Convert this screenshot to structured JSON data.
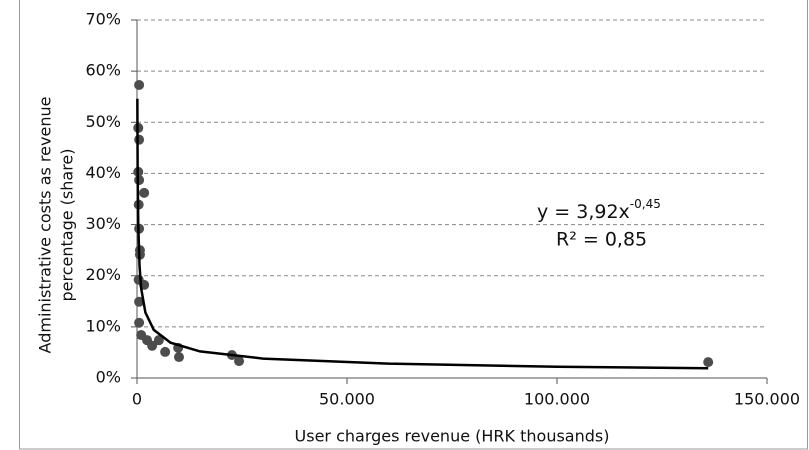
{
  "chart_data": {
    "type": "scatter",
    "xlabel": "User charges revenue (HRK thousands)",
    "ylabel": [
      "Administrative costs as revenue",
      "percentage (share)"
    ],
    "equation": "y = 3,92x",
    "equation_exponent": "-0,45",
    "r_squared": "R² = 0,85",
    "xlim": [
      0,
      150000
    ],
    "ylim": [
      0,
      70
    ],
    "xticks": [
      0,
      {
        "value": 50000,
        "label": "50.000"
      },
      {
        "value": 100000,
        "label": "100.000"
      },
      {
        "value": 150000,
        "label": "150.000"
      }
    ],
    "yticks": [
      {
        "value": 0,
        "label": "0%"
      },
      {
        "value": 10,
        "label": "10%"
      },
      {
        "value": 20,
        "label": "20%"
      },
      {
        "value": 30,
        "label": "30%"
      },
      {
        "value": 40,
        "label": "40%"
      },
      {
        "value": 50,
        "label": "50%"
      },
      {
        "value": 60,
        "label": "60%"
      },
      {
        "value": 70,
        "label": "70%"
      }
    ],
    "grid": true,
    "points": {
      "color": "#4d4d4d",
      "x": [
        500,
        300,
        500,
        300,
        500,
        1700,
        400,
        500,
        700,
        700,
        400,
        1700,
        500,
        500,
        1000,
        2400,
        3600,
        5200,
        6700,
        9800,
        10000,
        22600,
        24300,
        136000
      ],
      "values": [
        57.3,
        48.9,
        46.6,
        40.3,
        38.7,
        36.2,
        33.9,
        29.2,
        25.0,
        24.1,
        19.2,
        18.2,
        14.9,
        10.8,
        8.4,
        7.4,
        6.3,
        7.4,
        5.1,
        5.9,
        4.1,
        4.5,
        3.3,
        3.1
      ]
    },
    "trendline": {
      "color": "#000000",
      "x": [
        80,
        150,
        300,
        600,
        1000,
        2000,
        4000,
        8000,
        15000,
        30000,
        60000,
        100000,
        136000
      ],
      "values": [
        54.6,
        41.1,
        30.1,
        22.0,
        17.5,
        12.8,
        9.4,
        6.9,
        5.2,
        3.8,
        2.8,
        2.2,
        1.9
      ]
    }
  }
}
